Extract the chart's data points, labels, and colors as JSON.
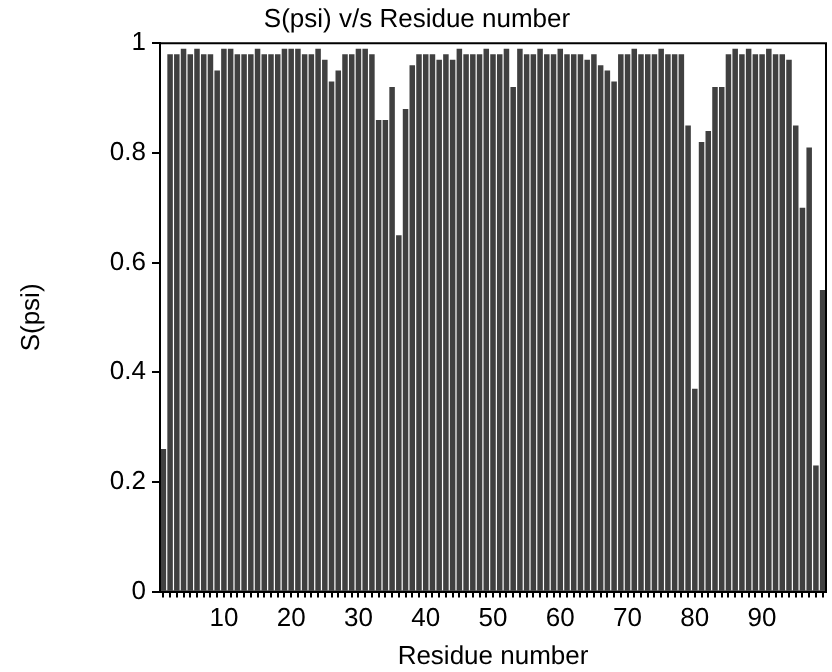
{
  "chart_data": {
    "type": "bar",
    "title": "S(psi) v/s Residue number",
    "xlabel": "Residue number",
    "ylabel": "S(psi)",
    "categories": [
      null,
      null,
      null,
      null,
      null,
      null,
      null,
      null,
      null,
      "10",
      null,
      null,
      null,
      null,
      null,
      null,
      null,
      null,
      null,
      "20",
      null,
      null,
      null,
      null,
      null,
      null,
      null,
      null,
      null,
      "30",
      null,
      null,
      null,
      null,
      null,
      null,
      null,
      null,
      null,
      "40",
      null,
      null,
      null,
      null,
      null,
      null,
      null,
      null,
      null,
      "50",
      null,
      null,
      null,
      null,
      null,
      null,
      null,
      null,
      null,
      "60",
      null,
      null,
      null,
      null,
      null,
      null,
      null,
      null,
      null,
      "70",
      null,
      null,
      null,
      null,
      null,
      null,
      null,
      null,
      null,
      "80",
      null,
      null,
      null,
      null,
      null,
      null,
      null,
      null,
      null,
      "90",
      null,
      null,
      null,
      null,
      null,
      null,
      null,
      null,
      null
    ],
    "values": [
      0.26,
      0.98,
      0.98,
      0.99,
      0.98,
      0.99,
      0.98,
      0.98,
      0.95,
      0.99,
      0.99,
      0.98,
      0.98,
      0.98,
      0.99,
      0.98,
      0.98,
      0.98,
      0.99,
      0.99,
      0.99,
      0.98,
      0.98,
      0.99,
      0.97,
      0.93,
      0.95,
      0.98,
      0.98,
      0.99,
      0.99,
      0.98,
      0.86,
      0.86,
      0.92,
      0.65,
      0.88,
      0.96,
      0.98,
      0.98,
      0.98,
      0.97,
      0.98,
      0.97,
      0.99,
      0.98,
      0.98,
      0.98,
      0.99,
      0.98,
      0.98,
      0.99,
      0.92,
      0.99,
      0.98,
      0.98,
      0.99,
      0.98,
      0.98,
      0.99,
      0.98,
      0.98,
      0.98,
      0.97,
      0.98,
      0.96,
      0.95,
      0.93,
      0.98,
      0.98,
      0.99,
      0.98,
      0.98,
      0.98,
      0.99,
      0.98,
      0.98,
      0.98,
      0.85,
      0.37,
      0.82,
      0.84,
      0.92,
      0.92,
      0.98,
      0.99,
      0.98,
      0.99,
      0.98,
      0.98,
      0.99,
      0.98,
      0.98,
      0.97,
      0.85,
      0.7,
      0.81,
      0.23,
      0.55
    ],
    "color": "#404040",
    "ylim": [
      0,
      1
    ],
    "yticks": [
      0,
      0.2,
      0.4,
      0.6,
      0.8,
      1
    ],
    "grid": false,
    "legend": false
  }
}
